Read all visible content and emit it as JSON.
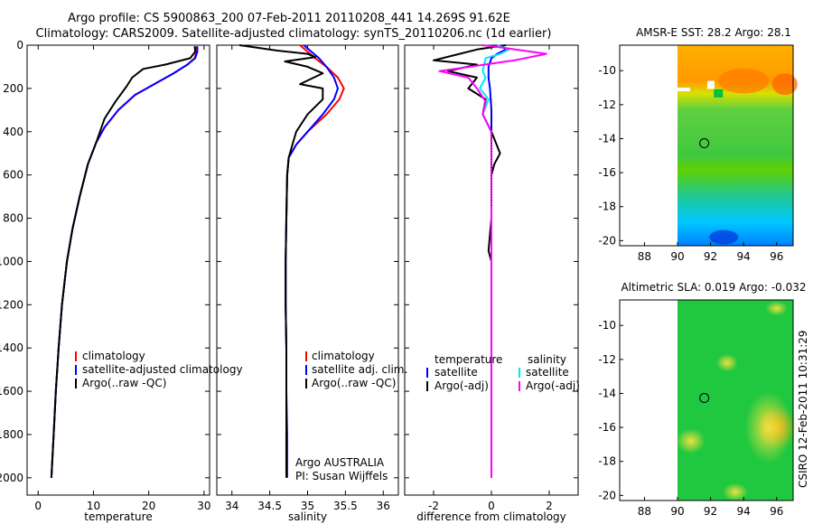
{
  "header": {
    "line1": "Argo profile: CS 5900863_200 07-Feb-2011 20110208_441 14.269S 91.62E",
    "line2": "Climatology: CARS2009. Satellite-adjusted climatology: synTS_20110206.nc (1d earlier)"
  },
  "colors": {
    "climatology": "#ff0000",
    "satellite": "#0000ff",
    "argo": "#000000",
    "sal_satellite": "#00e5ff",
    "sal_argo": "#ff00ff"
  },
  "stamp": "CSIRO 12-Feb-2011 10:31:29",
  "chart_data": [
    {
      "id": "temperature",
      "type": "line",
      "xlabel": "temperature",
      "ylabel": "",
      "xlim": [
        -2,
        31
      ],
      "ylim": [
        2080,
        0
      ],
      "xticks": [
        0,
        10,
        20,
        30
      ],
      "yticks": [
        0,
        200,
        400,
        600,
        800,
        1000,
        1200,
        1400,
        1600,
        1800,
        2000
      ],
      "legend": [
        "climatology",
        "satellite-adjusted climatology",
        "Argo(..raw -QC)"
      ],
      "series": [
        {
          "name": "climatology",
          "color": "climatology",
          "points": [
            [
              28.6,
              5
            ],
            [
              28.6,
              30
            ],
            [
              28.3,
              60
            ],
            [
              27,
              90
            ],
            [
              24.5,
              130
            ],
            [
              21,
              180
            ],
            [
              17.5,
              230
            ],
            [
              14.5,
              300
            ],
            [
              12,
              380
            ],
            [
              10.5,
              450
            ],
            [
              9,
              550
            ],
            [
              7.5,
              700
            ],
            [
              6.2,
              850
            ],
            [
              5.2,
              1000
            ],
            [
              4.3,
              1200
            ],
            [
              3.7,
              1400
            ],
            [
              3.2,
              1600
            ],
            [
              2.8,
              1800
            ],
            [
              2.4,
              2000
            ]
          ]
        },
        {
          "name": "satellite-adjusted climatology",
          "color": "satellite",
          "points": [
            [
              28.8,
              5
            ],
            [
              28.8,
              30
            ],
            [
              28.4,
              60
            ],
            [
              27,
              90
            ],
            [
              24.5,
              130
            ],
            [
              21,
              180
            ],
            [
              17.5,
              230
            ],
            [
              14.5,
              300
            ],
            [
              12,
              380
            ],
            [
              10.5,
              450
            ],
            [
              9,
              550
            ],
            [
              7.5,
              700
            ],
            [
              6.2,
              850
            ],
            [
              5.2,
              1000
            ],
            [
              4.3,
              1200
            ],
            [
              3.7,
              1400
            ],
            [
              3.2,
              1600
            ],
            [
              2.8,
              1800
            ],
            [
              2.4,
              2000
            ]
          ]
        },
        {
          "name": "Argo(..raw -QC)",
          "color": "argo",
          "points": [
            [
              28.3,
              5
            ],
            [
              28.4,
              30
            ],
            [
              27.5,
              60
            ],
            [
              23,
              90
            ],
            [
              19,
              110
            ],
            [
              17,
              150
            ],
            [
              16,
              190
            ],
            [
              14,
              260
            ],
            [
              12,
              340
            ],
            [
              10.5,
              450
            ],
            [
              9,
              550
            ],
            [
              7.5,
              700
            ],
            [
              6.2,
              850
            ],
            [
              5.2,
              1000
            ],
            [
              4.3,
              1200
            ],
            [
              3.7,
              1400
            ],
            [
              3.2,
              1600
            ],
            [
              2.8,
              1800
            ],
            [
              2.4,
              2000
            ]
          ]
        }
      ]
    },
    {
      "id": "salinity",
      "type": "line",
      "xlabel": "salinity",
      "ylabel": "",
      "xlim": [
        33.8,
        36.2
      ],
      "ylim": [
        2080,
        0
      ],
      "xticks": [
        34,
        34.5,
        35,
        35.5,
        36
      ],
      "xticklabels": [
        "34",
        "34.5",
        "35",
        "35.5",
        "36"
      ],
      "legend": [
        "climatology",
        "satellite adj. clim.",
        "Argo(..raw -QC)"
      ],
      "annotations": [
        "Argo AUSTRALIA",
        "PI: Susan Wijffels"
      ],
      "series": [
        {
          "name": "climatology",
          "color": "climatology",
          "points": [
            [
              34.9,
              0
            ],
            [
              35,
              30
            ],
            [
              35.1,
              60
            ],
            [
              35.25,
              100
            ],
            [
              35.4,
              150
            ],
            [
              35.48,
              200
            ],
            [
              35.42,
              250
            ],
            [
              35.25,
              320
            ],
            [
              35,
              400
            ],
            [
              34.85,
              460
            ],
            [
              34.75,
              520
            ],
            [
              34.73,
              600
            ],
            [
              34.72,
              800
            ],
            [
              34.71,
              1000
            ],
            [
              34.71,
              1200
            ],
            [
              34.72,
              1400
            ],
            [
              34.72,
              1600
            ],
            [
              34.72,
              1800
            ],
            [
              34.72,
              2000
            ]
          ]
        },
        {
          "name": "satellite adj. clim.",
          "color": "satellite",
          "points": [
            [
              34.95,
              0
            ],
            [
              35.05,
              30
            ],
            [
              35.15,
              60
            ],
            [
              35.25,
              100
            ],
            [
              35.35,
              150
            ],
            [
              35.4,
              200
            ],
            [
              35.35,
              250
            ],
            [
              35.2,
              320
            ],
            [
              35,
              400
            ],
            [
              34.85,
              460
            ],
            [
              34.75,
              520
            ],
            [
              34.73,
              600
            ],
            [
              34.72,
              800
            ],
            [
              34.71,
              1000
            ],
            [
              34.71,
              1200
            ],
            [
              34.72,
              1400
            ],
            [
              34.72,
              1600
            ],
            [
              34.73,
              1800
            ],
            [
              34.73,
              2000
            ]
          ]
        },
        {
          "name": "Argo(..raw -QC)",
          "color": "argo",
          "points": [
            [
              34.1,
              0
            ],
            [
              34.3,
              10
            ],
            [
              34.6,
              25
            ],
            [
              35,
              40
            ],
            [
              35.1,
              55
            ],
            [
              34.7,
              75
            ],
            [
              35,
              100
            ],
            [
              35.2,
              130
            ],
            [
              34.9,
              180
            ],
            [
              35.2,
              200
            ],
            [
              35.2,
              250
            ],
            [
              35,
              320
            ],
            [
              34.85,
              400
            ],
            [
              34.8,
              460
            ],
            [
              34.75,
              520
            ],
            [
              34.73,
              600
            ],
            [
              34.72,
              800
            ],
            [
              34.71,
              1000
            ],
            [
              34.71,
              1200
            ],
            [
              34.72,
              1400
            ],
            [
              34.72,
              1600
            ],
            [
              34.72,
              1800
            ],
            [
              34.72,
              2000
            ]
          ]
        }
      ]
    },
    {
      "id": "difference",
      "type": "line",
      "xlabel": "difference from climatology",
      "ylabel": "",
      "xlim": [
        -3,
        3
      ],
      "ylim": [
        2080,
        0
      ],
      "xticks": [
        -2,
        0,
        2
      ],
      "legend_temperature_header": "temperature",
      "legend_salinity_header": "salinity",
      "legend": [
        "satellite",
        "Argo(-adj)",
        "satellite",
        "Argo(-adj)"
      ],
      "series": [
        {
          "name": "temperature satellite",
          "color": "satellite",
          "points": [
            [
              0.3,
              0
            ],
            [
              0.5,
              20
            ],
            [
              0.2,
              40
            ],
            [
              0,
              60
            ],
            [
              -0.1,
              100
            ],
            [
              -0.1,
              150
            ],
            [
              -0.05,
              200
            ],
            [
              0,
              300
            ],
            [
              0,
              400
            ],
            [
              0,
              500
            ],
            [
              0,
              600
            ],
            [
              0,
              800
            ],
            [
              0,
              1000
            ],
            [
              0,
              1200
            ],
            [
              0,
              1400
            ],
            [
              0,
              1600
            ],
            [
              0,
              1800
            ],
            [
              0,
              2000
            ]
          ]
        },
        {
          "name": "temperature Argo(-adj)",
          "color": "argo",
          "points": [
            [
              0.5,
              0
            ],
            [
              -0.5,
              20
            ],
            [
              -2,
              70
            ],
            [
              -0.5,
              90
            ],
            [
              -1.5,
              120
            ],
            [
              -0.5,
              150
            ],
            [
              -0.8,
              200
            ],
            [
              -0.2,
              250
            ],
            [
              -0.3,
              320
            ],
            [
              0,
              400
            ],
            [
              0.3,
              500
            ],
            [
              0.1,
              550
            ],
            [
              0,
              600
            ],
            [
              0,
              800
            ],
            [
              -0.1,
              950
            ],
            [
              0,
              1000
            ],
            [
              0,
              1200
            ],
            [
              0,
              1400
            ],
            [
              0,
              1600
            ],
            [
              0,
              1800
            ],
            [
              0,
              2000
            ]
          ]
        },
        {
          "name": "salinity satellite",
          "color": "sal_satellite",
          "points": [
            [
              0.2,
              0
            ],
            [
              0.6,
              20
            ],
            [
              0.3,
              40
            ],
            [
              -0.2,
              60
            ],
            [
              -0.3,
              120
            ],
            [
              -0.2,
              150
            ],
            [
              -0.4,
              200
            ],
            [
              -0.1,
              250
            ],
            [
              -0.3,
              320
            ],
            [
              0,
              400
            ],
            [
              0,
              500
            ],
            [
              0,
              600
            ],
            [
              0,
              800
            ],
            [
              0,
              1000
            ],
            [
              0,
              1200
            ],
            [
              0,
              1400
            ],
            [
              0,
              1600
            ],
            [
              0,
              1800
            ],
            [
              0,
              2000
            ]
          ]
        },
        {
          "name": "salinity Argo(-adj)",
          "color": "sal_argo",
          "points": [
            [
              -0.3,
              0
            ],
            [
              0.3,
              10
            ],
            [
              1.9,
              40
            ],
            [
              0.8,
              70
            ],
            [
              -1.8,
              120
            ],
            [
              -0.8,
              150
            ],
            [
              -0.5,
              200
            ],
            [
              -0.2,
              260
            ],
            [
              -0.3,
              320
            ],
            [
              0,
              400
            ],
            [
              0,
              500
            ],
            [
              0,
              600
            ],
            [
              0,
              800
            ],
            [
              0,
              1000
            ],
            [
              0,
              1200
            ],
            [
              0,
              1400
            ],
            [
              0,
              1600
            ],
            [
              0,
              1800
            ],
            [
              0,
              2000
            ]
          ]
        }
      ]
    },
    {
      "id": "sst_map",
      "type": "heatmap",
      "title": "AMSR-E SST: 28.2 Argo: 28.1",
      "xlim": [
        86.5,
        97
      ],
      "ylim": [
        -20.3,
        -8.5
      ],
      "xticks": [
        88,
        90,
        92,
        94,
        96
      ],
      "yticks": [
        -10,
        -12,
        -14,
        -16,
        -18,
        -20
      ],
      "profile_location": [
        91.62,
        -14.269
      ]
    },
    {
      "id": "sla_map",
      "type": "heatmap",
      "title": "Altimetric SLA: 0.019 Argo: -0.032",
      "xlim": [
        86.5,
        97
      ],
      "ylim": [
        -20.3,
        -8.5
      ],
      "xticks": [
        88,
        90,
        92,
        94,
        96
      ],
      "yticks": [
        -10,
        -12,
        -14,
        -16,
        -18,
        -20
      ],
      "profile_location": [
        91.62,
        -14.269
      ]
    }
  ]
}
